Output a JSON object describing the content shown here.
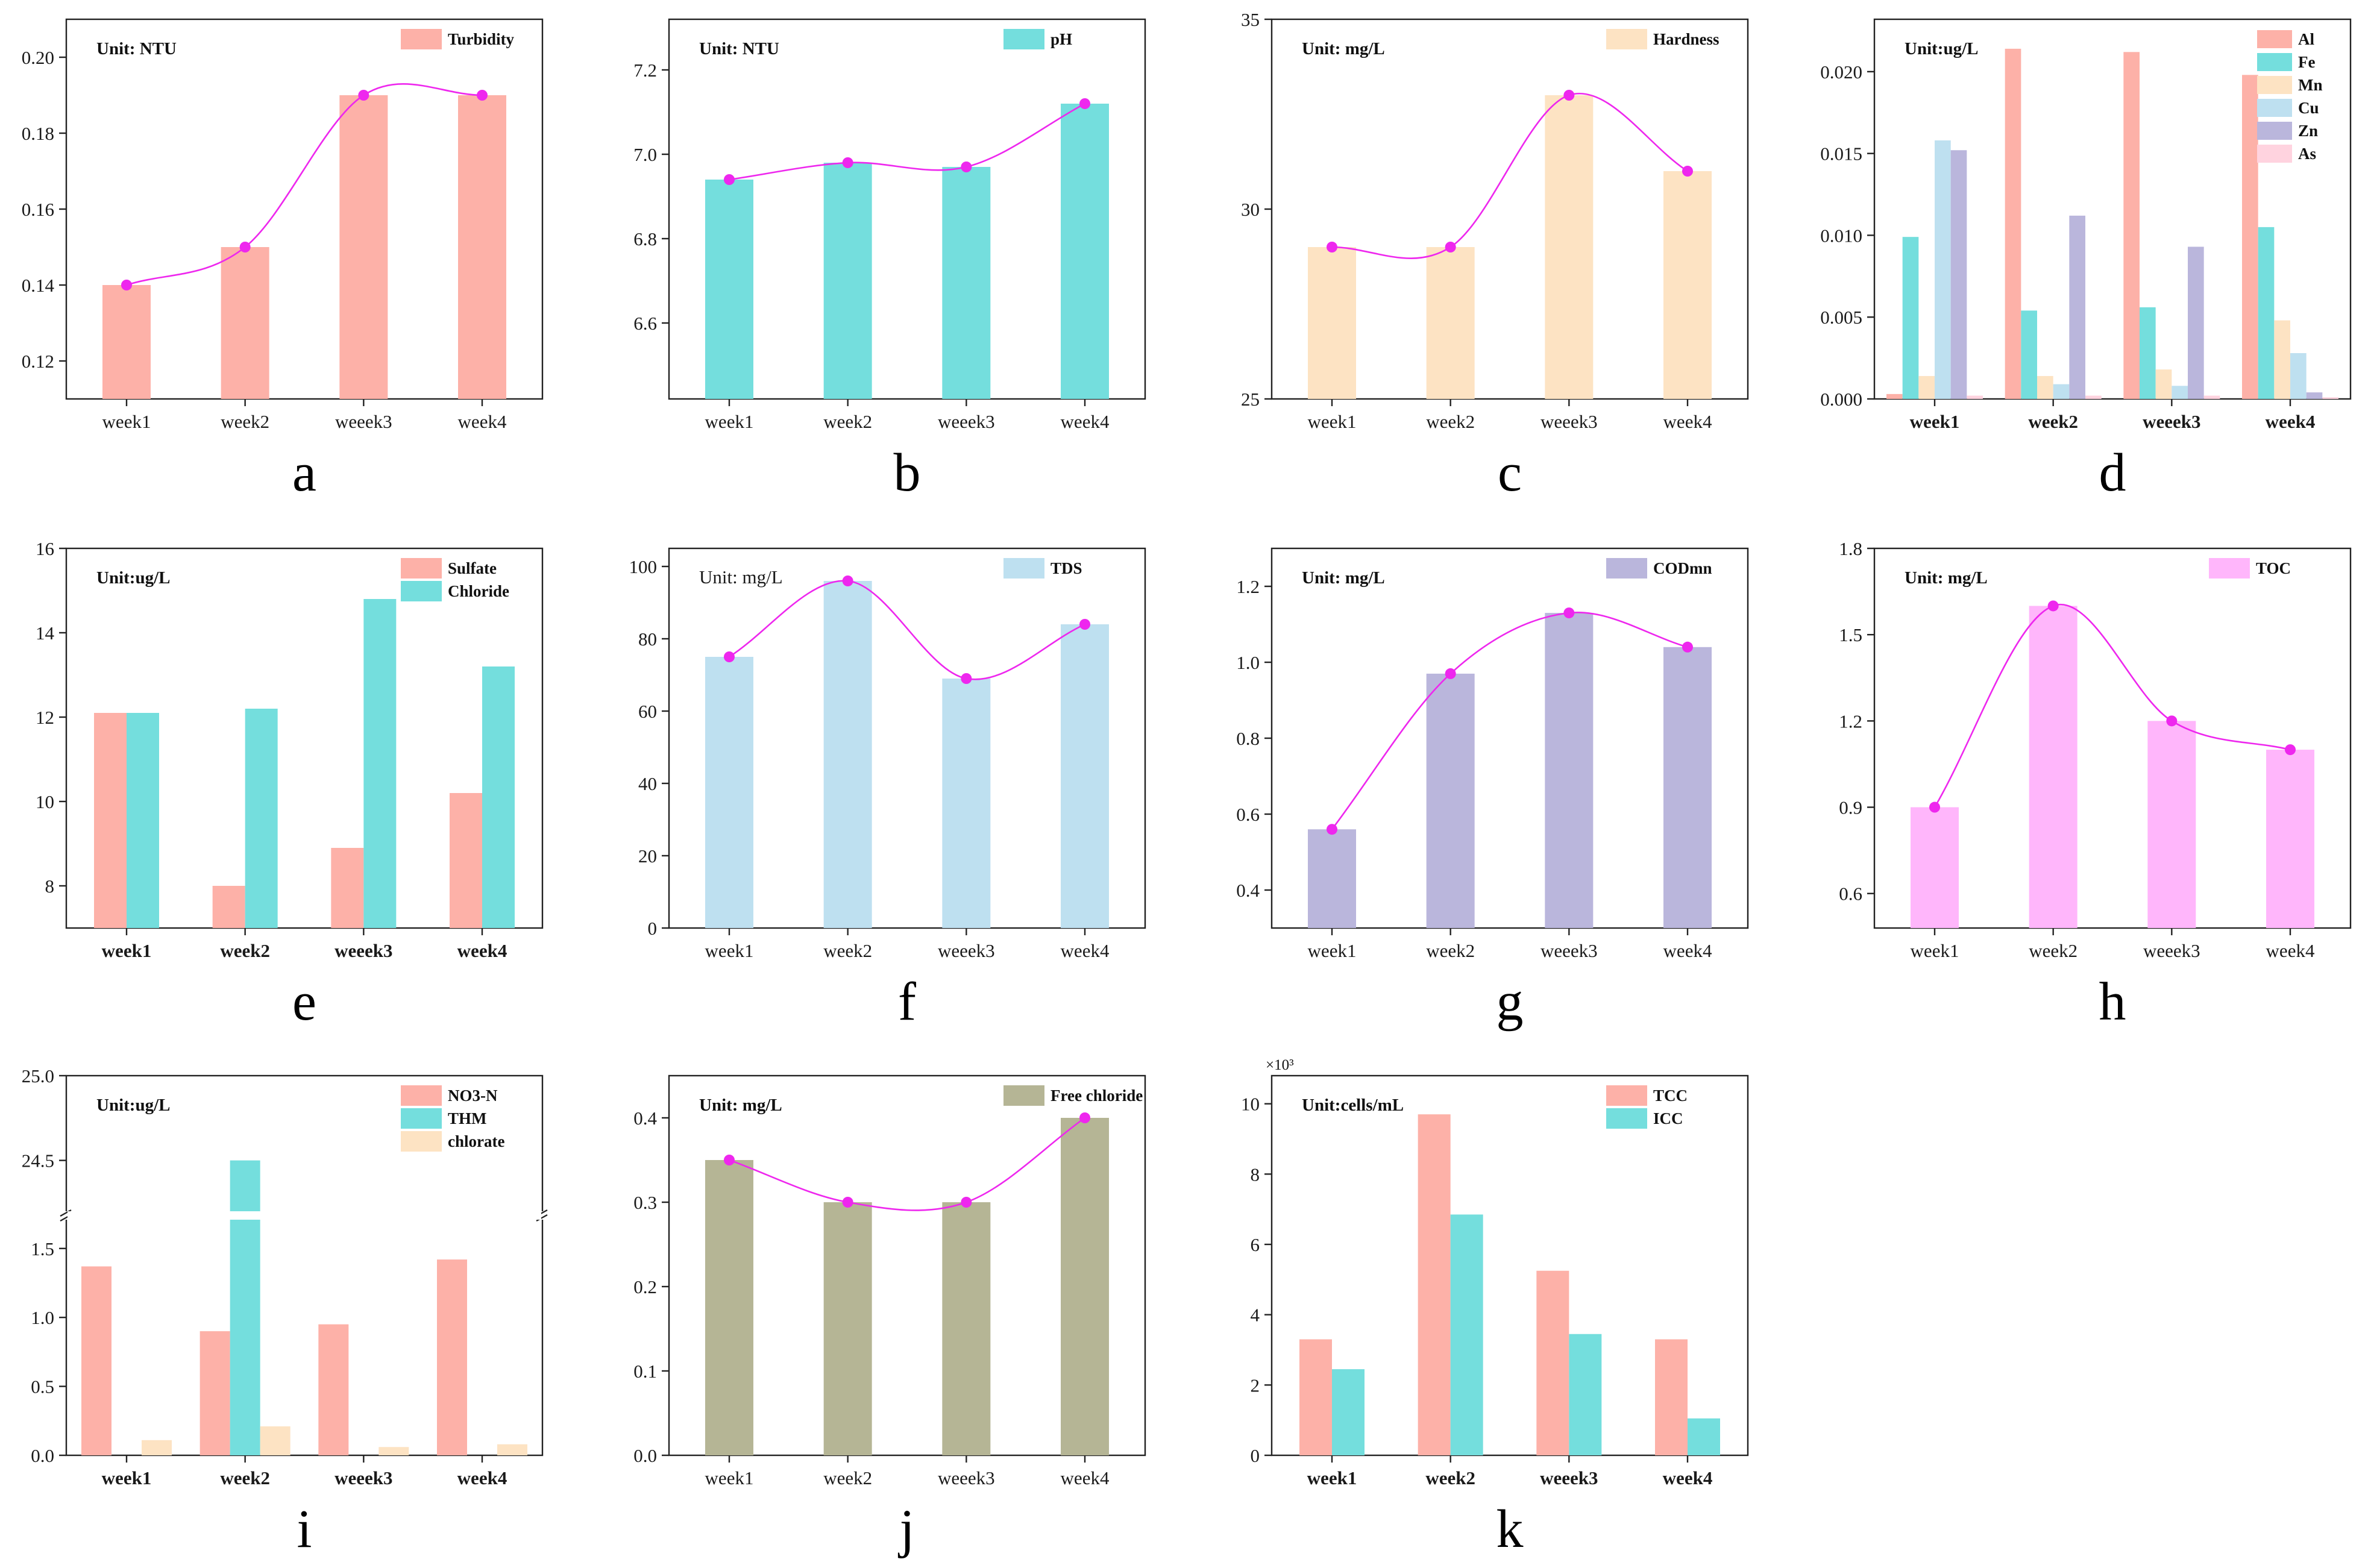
{
  "figure": {
    "title": ""
  },
  "chart_data": [
    {
      "id": "a",
      "type": "bar",
      "panel_label": "a",
      "unit": "Unit:  NTU",
      "unit_bold": true,
      "categories": [
        "week1",
        "week2",
        "weeek3",
        "week4"
      ],
      "cat_bold": false,
      "series": [
        {
          "name": "Turbidity",
          "color": "#FDB1A8",
          "values": [
            0.14,
            0.15,
            0.19,
            0.19
          ]
        }
      ],
      "ylim": [
        0.11,
        0.21
      ],
      "yticks": [
        "0.12",
        "0.14",
        "0.16",
        "0.18",
        "0.20"
      ],
      "trend": {
        "color": "#EE27EE",
        "points": [
          0.14,
          0.15,
          0.19,
          0.19
        ]
      }
    },
    {
      "id": "b",
      "type": "bar",
      "panel_label": "b",
      "unit": "Unit:  NTU",
      "unit_bold": true,
      "categories": [
        "week1",
        "week2",
        "weeek3",
        "week4"
      ],
      "cat_bold": false,
      "series": [
        {
          "name": "pH",
          "color": "#74DEDD",
          "values": [
            6.94,
            6.98,
            6.97,
            7.12
          ]
        }
      ],
      "ylim": [
        6.42,
        7.32
      ],
      "yticks": [
        "6.6",
        "6.8",
        "7.0",
        "7.2"
      ],
      "trend": {
        "color": "#EE27EE",
        "points": [
          6.94,
          6.98,
          6.97,
          7.12
        ]
      }
    },
    {
      "id": "c",
      "type": "bar",
      "panel_label": "c",
      "unit": "Unit:  mg/L",
      "unit_bold": true,
      "categories": [
        "week1",
        "week2",
        "weeek3",
        "week4"
      ],
      "cat_bold": false,
      "series": [
        {
          "name": "Hardness",
          "color": "#FDE3C3",
          "values": [
            29,
            29,
            33,
            31
          ]
        }
      ],
      "ylim": [
        25,
        35
      ],
      "yticks": [
        "25",
        "30",
        "35"
      ],
      "trend": {
        "color": "#EE27EE",
        "points": [
          29,
          29,
          33,
          31
        ]
      }
    },
    {
      "id": "d",
      "type": "bar",
      "panel_label": "d",
      "unit": "Unit:ug/L",
      "unit_bold": true,
      "categories": [
        "week1",
        "week2",
        "weeek3",
        "week4"
      ],
      "cat_bold": true,
      "series": [
        {
          "name": "Al",
          "color": "#FDB1A8",
          "values": [
            0.0003,
            0.0214,
            0.0212,
            0.0198
          ]
        },
        {
          "name": "Fe",
          "color": "#74DEDD",
          "values": [
            0.0099,
            0.0054,
            0.0056,
            0.0105
          ]
        },
        {
          "name": "Mn",
          "color": "#FDE3C3",
          "values": [
            0.0014,
            0.0014,
            0.0018,
            0.0048
          ]
        },
        {
          "name": "Cu",
          "color": "#BEE0F0",
          "values": [
            0.0158,
            0.0009,
            0.0008,
            0.0028
          ]
        },
        {
          "name": "Zn",
          "color": "#BAB6DC",
          "values": [
            0.0152,
            0.0112,
            0.0093,
            0.0004
          ]
        },
        {
          "name": "As",
          "color": "#FFD3DF",
          "values": [
            0.0002,
            0.0002,
            0.0002,
            0.0001
          ]
        }
      ],
      "ylim": [
        0,
        0.0232
      ],
      "yticks": [
        "0.000",
        "0.005",
        "0.010",
        "0.015",
        "0.020"
      ],
      "trend": null
    },
    {
      "id": "e",
      "type": "bar",
      "panel_label": "e",
      "unit": "Unit:ug/L",
      "unit_bold": true,
      "categories": [
        "week1",
        "week2",
        "weeek3",
        "week4"
      ],
      "cat_bold": true,
      "series": [
        {
          "name": "Sulfate",
          "color": "#FDB1A8",
          "values": [
            12.1,
            8.0,
            8.9,
            10.2
          ]
        },
        {
          "name": "Chloride",
          "color": "#74DEDD",
          "values": [
            12.1,
            12.2,
            14.8,
            13.2
          ]
        }
      ],
      "ylim": [
        7,
        16
      ],
      "yticks": [
        "8",
        "10",
        "12",
        "14",
        "16"
      ],
      "trend": null
    },
    {
      "id": "f",
      "type": "bar",
      "panel_label": "f",
      "unit": "Unit:  mg/L",
      "unit_bold": false,
      "categories": [
        "week1",
        "week2",
        "weeek3",
        "week4"
      ],
      "cat_bold": false,
      "series": [
        {
          "name": "TDS",
          "color": "#BEE0F0",
          "values": [
            75,
            96,
            69,
            84
          ]
        }
      ],
      "ylim": [
        0,
        105
      ],
      "yticks": [
        "0",
        "20",
        "40",
        "60",
        "80",
        "100"
      ],
      "trend": {
        "color": "#EE27EE",
        "points": [
          75,
          96,
          69,
          84
        ]
      }
    },
    {
      "id": "g",
      "type": "bar",
      "panel_label": "g",
      "unit": "Unit:  mg/L",
      "unit_bold": true,
      "categories": [
        "week1",
        "week2",
        "weeek3",
        "week4"
      ],
      "cat_bold": false,
      "series": [
        {
          "name": "CODmn",
          "color": "#BAB6DC",
          "values": [
            0.56,
            0.97,
            1.13,
            1.04
          ]
        }
      ],
      "ylim": [
        0.3,
        1.3
      ],
      "yticks": [
        "0.4",
        "0.6",
        "0.8",
        "1.0",
        "1.2"
      ],
      "trend": {
        "color": "#EE27EE",
        "points": [
          0.56,
          0.97,
          1.13,
          1.04
        ]
      }
    },
    {
      "id": "h",
      "type": "bar",
      "panel_label": "h",
      "unit": "Unit:  mg/L",
      "unit_bold": true,
      "categories": [
        "week1",
        "week2",
        "weeek3",
        "week4"
      ],
      "cat_bold": false,
      "series": [
        {
          "name": "TOC",
          "color": "#FFB6FB",
          "values": [
            0.9,
            1.6,
            1.2,
            1.1
          ]
        }
      ],
      "ylim": [
        0.48,
        1.8
      ],
      "yticks": [
        "0.6",
        "0.9",
        "1.2",
        "1.5",
        "1.8"
      ],
      "trend": {
        "color": "#EE27EE",
        "points": [
          0.9,
          1.6,
          1.2,
          1.1
        ]
      }
    },
    {
      "id": "i",
      "type": "bar",
      "panel_label": "i",
      "unit": "Unit:ug/L",
      "unit_bold": true,
      "categories": [
        "week1",
        "week2",
        "weeek3",
        "week4"
      ],
      "cat_bold": true,
      "series": [
        {
          "name": "NO3-N",
          "color": "#FDB1A8",
          "values": [
            1.37,
            0.9,
            0.95,
            1.42
          ]
        },
        {
          "name": "THM",
          "color": "#74DEDD",
          "values": [
            0,
            24.5,
            0,
            0
          ]
        },
        {
          "name": "chlorate",
          "color": "#FDE3C3",
          "values": [
            0.11,
            0.21,
            0.06,
            0.08
          ]
        }
      ],
      "axis_break": {
        "lower": [
          0,
          1.7
        ],
        "upper": [
          24.2,
          25.0
        ],
        "break_at": 1.7
      },
      "yticks_lower": [
        "0.0",
        "0.5",
        "1.0",
        "1.5"
      ],
      "yticks_upper": [
        "24.5",
        "25.0"
      ],
      "trend": null
    },
    {
      "id": "j",
      "type": "bar",
      "panel_label": "j",
      "unit": "Unit:  mg/L",
      "unit_bold": true,
      "categories": [
        "week1",
        "week2",
        "weeek3",
        "week4"
      ],
      "cat_bold": false,
      "series": [
        {
          "name": "Free chloride",
          "color": "#B5B595",
          "values": [
            0.35,
            0.3,
            0.3,
            0.4
          ]
        }
      ],
      "ylim": [
        0,
        0.45
      ],
      "yticks": [
        "0.0",
        "0.1",
        "0.2",
        "0.3",
        "0.4"
      ],
      "trend": {
        "color": "#EE27EE",
        "points": [
          0.35,
          0.3,
          0.3,
          0.4
        ]
      }
    },
    {
      "id": "k",
      "type": "bar",
      "panel_label": "k",
      "unit": "Unit:cells/mL",
      "unit_bold": true,
      "multiplier": "×10³",
      "categories": [
        "week1",
        "week2",
        "weeek3",
        "week4"
      ],
      "cat_bold": true,
      "series": [
        {
          "name": "TCC",
          "color": "#FDB1A8",
          "values": [
            3.3,
            9.7,
            5.25,
            3.3
          ]
        },
        {
          "name": "ICC",
          "color": "#74DEDD",
          "values": [
            2.45,
            6.85,
            3.45,
            1.05
          ]
        }
      ],
      "ylim": [
        0,
        10.8
      ],
      "yticks": [
        "0",
        "2",
        "4",
        "6",
        "8",
        "10"
      ],
      "trend": null
    }
  ]
}
